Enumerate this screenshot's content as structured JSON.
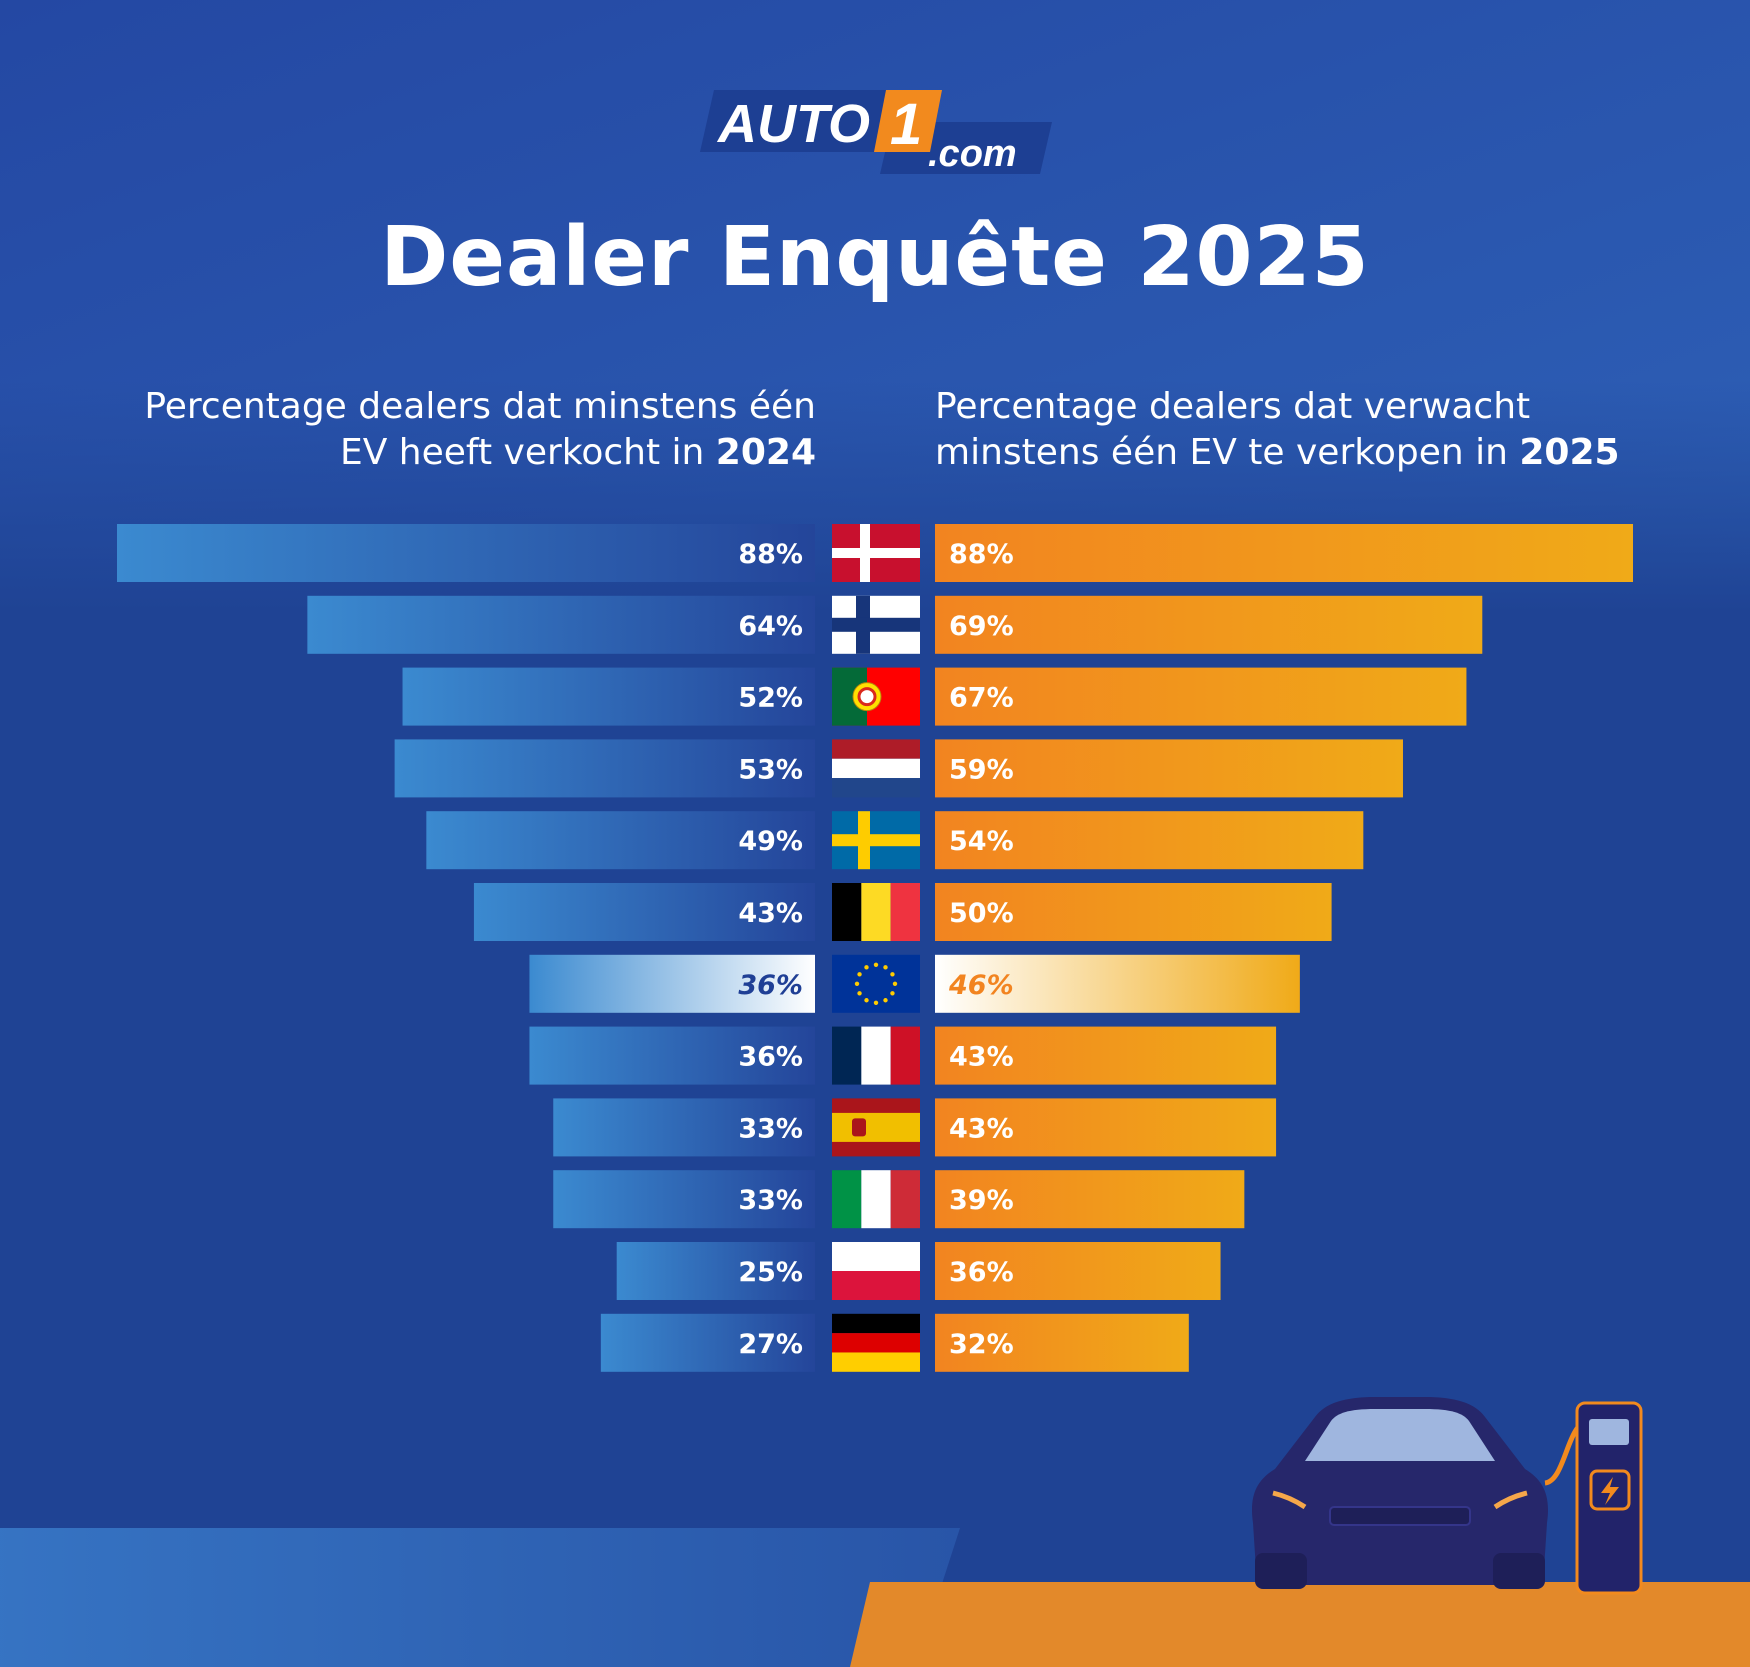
{
  "brand": {
    "logo_text": "AUTO",
    "logo_number": "1",
    "logo_suffix": ".com"
  },
  "page": {
    "title": "Dealer Enquête 2025"
  },
  "headings": {
    "left": {
      "text": "Percentage dealers dat minstens één EV heeft verkocht in ",
      "year": "2024"
    },
    "right": {
      "text": "Percentage dealers dat verwacht minstens één EV te verkopen in ",
      "year": "2025"
    }
  },
  "colors": {
    "left_bar_start": "#3b8ad0",
    "left_bar_end": "#24459a",
    "right_bar_start": "#f28420",
    "right_bar_end": "#f0aa18",
    "highlight_text_left": "#1f3f95",
    "highlight_text_right": "#f28420",
    "label_text": "#ffffff"
  },
  "chart_data": {
    "type": "bar",
    "orientation": "horizontal-butterfly",
    "categories": [
      "Denmark",
      "Finland",
      "Portugal",
      "Netherlands",
      "Sweden",
      "Belgium",
      "EU",
      "France",
      "Spain",
      "Italy",
      "Poland",
      "Germany"
    ],
    "flags": [
      "dk-flag-icon",
      "fi-flag-icon",
      "pt-flag-icon",
      "nl-flag-icon",
      "se-flag-icon",
      "be-flag-icon",
      "eu-flag-icon",
      "fr-flag-icon",
      "es-flag-icon",
      "it-flag-icon",
      "pl-flag-icon",
      "de-flag-icon"
    ],
    "series": [
      {
        "name": "Percentage dealers dat minstens één EV heeft verkocht in 2024",
        "values": [
          88,
          64,
          52,
          53,
          49,
          43,
          36,
          36,
          33,
          33,
          25,
          27
        ]
      },
      {
        "name": "Percentage dealers dat verwacht minstens één EV te verkopen in 2025",
        "values": [
          88,
          69,
          67,
          59,
          54,
          50,
          46,
          43,
          43,
          39,
          36,
          32
        ]
      }
    ],
    "labels_left": [
      "88%",
      "64%",
      "52%",
      "53%",
      "49%",
      "43%",
      "36%",
      "36%",
      "33%",
      "33%",
      "25%",
      "27%"
    ],
    "labels_right": [
      "88%",
      "69%",
      "67%",
      "59%",
      "54%",
      "50%",
      "46%",
      "43%",
      "43%",
      "39%",
      "36%",
      "32%"
    ],
    "highlight_category": "EU",
    "xlim": [
      0,
      88
    ]
  }
}
